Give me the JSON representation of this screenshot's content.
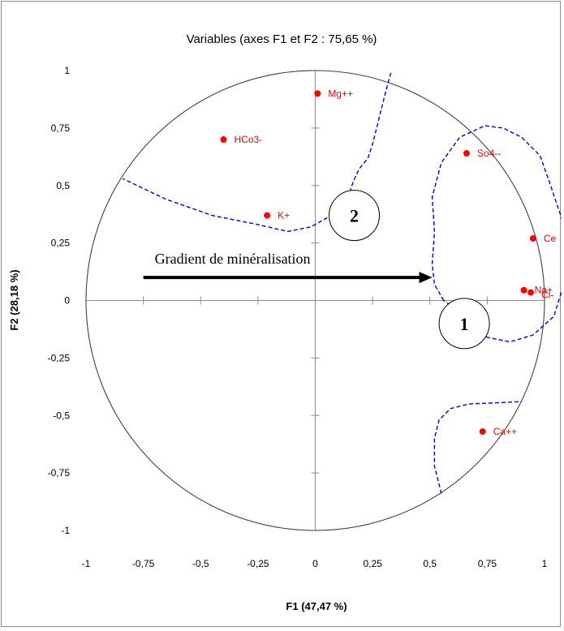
{
  "chart_data": {
    "type": "scatter",
    "title": "Variables (axes F1 et F2 : 75,65 %)",
    "xlabel": "F1 (47,47 %)",
    "ylabel": "F2 (28,18 %)",
    "xlim": [
      -1,
      1
    ],
    "ylim": [
      -1,
      1
    ],
    "x_ticks": [
      -1,
      -0.75,
      -0.5,
      -0.25,
      0,
      0.25,
      0.5,
      0.75,
      1
    ],
    "y_ticks": [
      -1,
      -0.75,
      -0.5,
      -0.25,
      0,
      0.25,
      0.5,
      0.75,
      1
    ],
    "x_tick_labels": [
      "-1",
      "-0,75",
      "-0,5",
      "-0,25",
      "0",
      "0,25",
      "0,5",
      "0,75",
      "1"
    ],
    "y_tick_labels": [
      "-1",
      "-0,75",
      "-0,5",
      "-0,25",
      "0",
      "0,25",
      "0,5",
      "0,75",
      "1"
    ],
    "grid": false,
    "correlation_circle": true,
    "point_color": "#ff0000",
    "points": [
      {
        "label": "Mg++",
        "x": 0.01,
        "y": 0.9
      },
      {
        "label": "HCo3-",
        "x": -0.4,
        "y": 0.7
      },
      {
        "label": "So4--",
        "x": 0.66,
        "y": 0.64
      },
      {
        "label": "K+",
        "x": -0.21,
        "y": 0.37
      },
      {
        "label": "Ce",
        "x": 0.95,
        "y": 0.27
      },
      {
        "label": "Na+",
        "x": 0.91,
        "y": 0.045
      },
      {
        "label": "Cl-",
        "x": 0.94,
        "y": 0.035
      },
      {
        "label": "Ca++",
        "x": 0.73,
        "y": -0.57
      }
    ],
    "annotations": {
      "gradient_text": "Gradient de minéralisation",
      "group_1_label": "1",
      "group_2_label": "2",
      "boundary_color": "#0000cc"
    }
  }
}
